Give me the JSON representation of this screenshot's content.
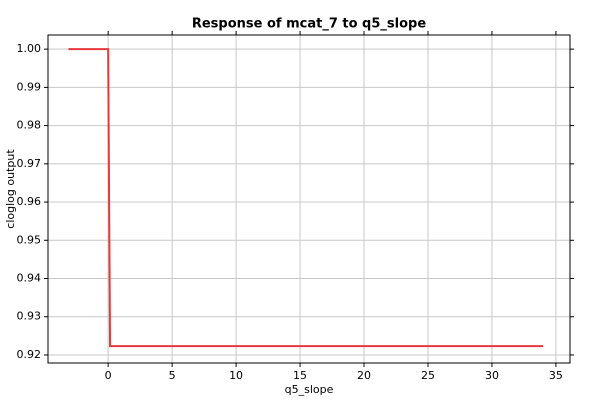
{
  "chart_data": {
    "type": "line",
    "title": "Response of mcat_7 to q5_slope",
    "x_label": "q5_slope",
    "y_label": "cloglog output",
    "x": [
      -3.1,
      0,
      0.15,
      34
    ],
    "series": [
      {
        "color": "#e8383d",
        "values": [
          1.0,
          1.0,
          0.9223,
          0.9223
        ]
      }
    ],
    "xlim": [
      -4.7,
      36.1
    ],
    "ylim": [
      0.9179,
      1.0037
    ],
    "xticks": [
      0,
      5,
      10,
      15,
      20,
      25,
      30,
      35
    ],
    "yticks": [
      0.92,
      0.93,
      0.94,
      0.95,
      0.96,
      0.97,
      0.98,
      0.99,
      {
        "value": 1.0,
        "label": "1.00"
      }
    ],
    "grid": true
  }
}
